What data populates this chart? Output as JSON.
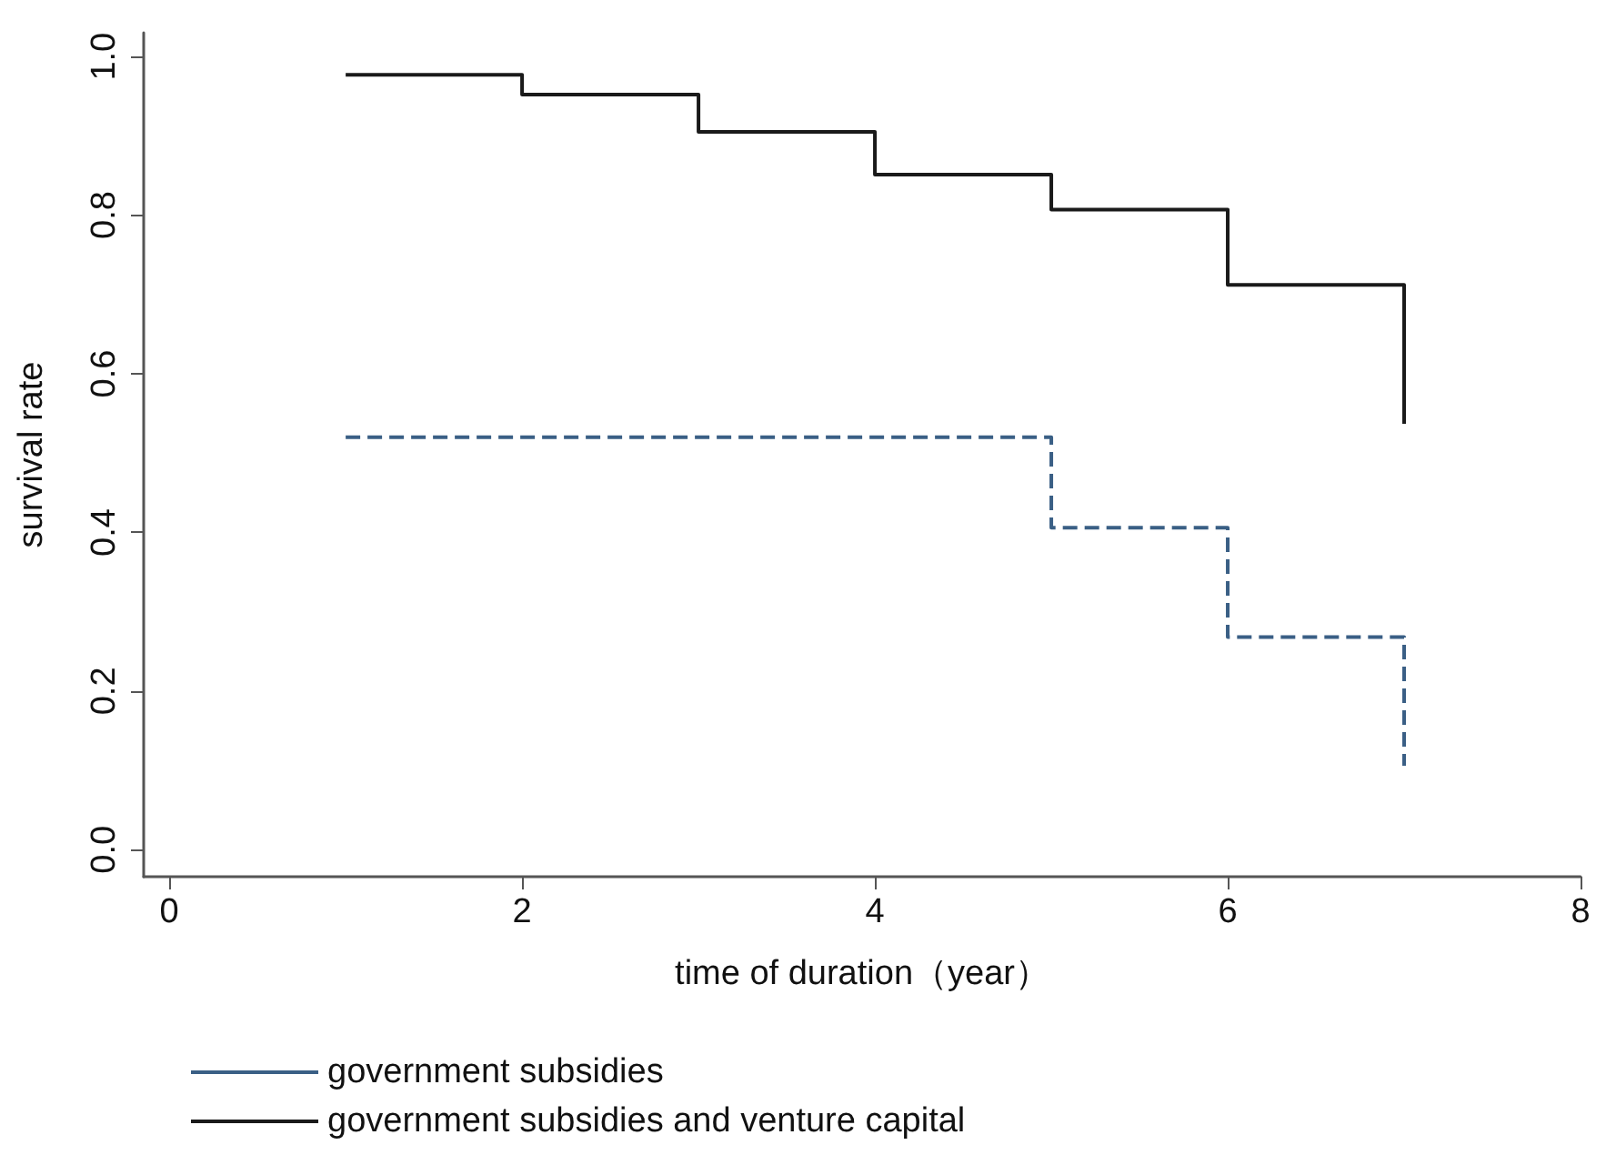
{
  "chart_data": {
    "type": "step",
    "xlabel": "time of duration（year）",
    "ylabel": "survival rate",
    "x": [
      1,
      2,
      3,
      4,
      5,
      6,
      7
    ],
    "series": [
      {
        "name": "government subsidies",
        "color": "#3a5f85",
        "line_style": "dashed",
        "values": [
          0.52,
          0.52,
          0.52,
          0.52,
          0.406,
          0.268,
          0.106
        ]
      },
      {
        "name": "government subsidies and venture capital",
        "color": "#1a1a1a",
        "line_style": "solid",
        "values": [
          0.977,
          0.952,
          0.905,
          0.851,
          0.807,
          0.712,
          0.537
        ]
      }
    ],
    "xlim": [
      -0.145,
      8
    ],
    "xticks": [
      0,
      2,
      4,
      6,
      8
    ],
    "ylim": [
      -0.034,
      1.03
    ],
    "yticks": [
      {
        "value": 0,
        "label": "0.0"
      },
      {
        "value": 0.2,
        "label": "0.2"
      },
      {
        "value": 0.4,
        "label": "0.4"
      },
      {
        "value": 0.6,
        "label": "0.6"
      },
      {
        "value": 0.8,
        "label": "0.8"
      },
      {
        "value": 1,
        "label": "1.0"
      }
    ],
    "grid": false,
    "legend": "bottom left",
    "marker": "none"
  }
}
